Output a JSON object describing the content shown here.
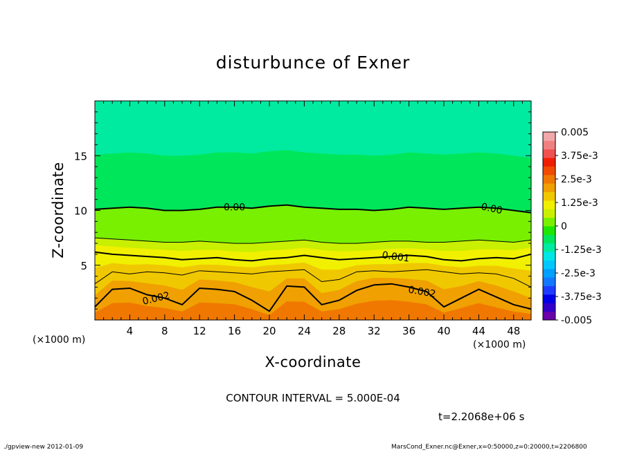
{
  "chart_data": {
    "type": "heatmap",
    "title": "disturbunce of Exner",
    "xlabel": "X-coordinate",
    "ylabel": "Z-coordinate",
    "x_unit_label": "(×1000 m)",
    "y_unit_label": "(×1000 m)",
    "xlim": [
      0,
      50
    ],
    "ylim": [
      0,
      20
    ],
    "x_ticks": [
      4,
      8,
      12,
      16,
      20,
      24,
      28,
      32,
      36,
      40,
      44,
      48
    ],
    "y_ticks": [
      5,
      10,
      15
    ],
    "colorbar": {
      "tick_labels": [
        "0.005",
        "3.75e-3",
        "2.5e-3",
        "1.25e-3",
        "0",
        "-1.25e-3",
        "-2.5e-3",
        "-3.75e-3",
        "-0.005"
      ],
      "range": [
        -0.005,
        0.005
      ],
      "colors": [
        "#6a00aa",
        "#3200c8",
        "#0000e6",
        "#1e3cff",
        "#1478ff",
        "#00a0ff",
        "#00c8ff",
        "#00e6e6",
        "#00eba0",
        "#00e65a",
        "#1ee600",
        "#78f000",
        "#c8f000",
        "#f0f000",
        "#f0c800",
        "#f0a000",
        "#f07800",
        "#f04b00",
        "#f01e00",
        "#f05050",
        "#f08080",
        "#f0a8a8"
      ]
    },
    "contour_interval": "5.000E-04",
    "contours": [
      {
        "level": 0.0,
        "label": "0.00",
        "z": [
          10.1,
          10.2,
          10.3,
          10.2,
          10.0,
          10.0,
          10.1,
          10.3,
          10.3,
          10.2,
          10.4,
          10.5,
          10.3,
          10.2,
          10.1,
          10.1,
          10.0,
          10.1,
          10.3,
          10.2,
          10.1,
          10.2,
          10.3,
          10.2,
          10.0,
          9.8
        ]
      },
      {
        "level": 0.0005,
        "label": "",
        "z": [
          7.5,
          7.4,
          7.3,
          7.2,
          7.1,
          7.1,
          7.2,
          7.1,
          7.0,
          7.0,
          7.1,
          7.2,
          7.3,
          7.1,
          7.0,
          7.0,
          7.1,
          7.2,
          7.2,
          7.1,
          7.1,
          7.2,
          7.3,
          7.2,
          7.1,
          7.3
        ]
      },
      {
        "level": 0.001,
        "label": "0.001",
        "z": [
          6.2,
          6.0,
          5.9,
          5.8,
          5.7,
          5.5,
          5.6,
          5.7,
          5.5,
          5.4,
          5.6,
          5.7,
          5.9,
          5.7,
          5.5,
          5.6,
          5.7,
          5.8,
          5.9,
          5.8,
          5.5,
          5.4,
          5.6,
          5.7,
          5.6,
          6.0
        ]
      },
      {
        "level": 0.0015,
        "label": "",
        "z": [
          3.3,
          4.4,
          4.2,
          4.4,
          4.3,
          4.1,
          4.5,
          4.4,
          4.3,
          4.2,
          4.4,
          4.5,
          4.6,
          3.5,
          3.7,
          4.4,
          4.5,
          4.4,
          4.5,
          4.6,
          4.4,
          4.2,
          4.3,
          4.2,
          3.8,
          3.0
        ]
      },
      {
        "level": 0.002,
        "label": "0.002",
        "z": [
          1.2,
          2.8,
          2.9,
          2.3,
          2.0,
          1.4,
          2.9,
          2.8,
          2.6,
          1.8,
          0.8,
          3.1,
          3.0,
          1.4,
          1.8,
          2.7,
          3.2,
          3.3,
          3.0,
          2.6,
          1.2,
          2.0,
          2.8,
          2.1,
          1.4,
          1.0
        ]
      }
    ],
    "time": "t=2.2068e+06 s"
  },
  "footer": {
    "left": "./gpview-new   2012-01-09",
    "right": "MarsCond_Exner.nc@Exner,x=0:50000,z=0:20000,t=2206800"
  }
}
